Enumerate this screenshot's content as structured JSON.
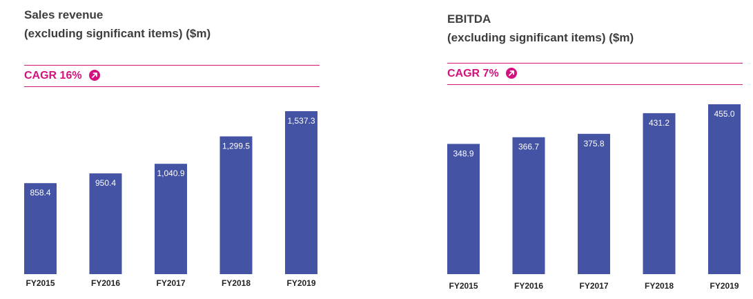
{
  "colors": {
    "bar": "#4453a3",
    "accent": "#d4117c",
    "title": "#3d3d3d"
  },
  "chart_data": [
    {
      "type": "bar",
      "title_lines": [
        "Sales revenue",
        "(excluding significant items) ($m)"
      ],
      "cagr_label": "CAGR 16%",
      "cagr_icon": "arrow-up-right-circle-icon",
      "categories": [
        "FY2015",
        "FY2016",
        "FY2017",
        "FY2018",
        "FY2019"
      ],
      "values": [
        858.4,
        950.4,
        1040.9,
        1299.5,
        1537.3
      ],
      "value_labels": [
        "858.4",
        "950.4",
        "1,040.9",
        "1,299.5",
        "1,537.3"
      ],
      "ylim": [
        0,
        1537.3
      ]
    },
    {
      "type": "bar",
      "title_lines": [
        "EBITDA",
        "(excluding significant items) ($m)"
      ],
      "cagr_label": "CAGR 7%",
      "cagr_icon": "arrow-up-right-circle-icon",
      "categories": [
        "FY2015",
        "FY2016",
        "FY2017",
        "FY2018",
        "FY2019"
      ],
      "values": [
        348.9,
        366.7,
        375.8,
        431.2,
        455.0
      ],
      "value_labels": [
        "348.9",
        "366.7",
        "375.8",
        "431.2",
        "455.0"
      ],
      "ylim": [
        0,
        455.0
      ]
    }
  ]
}
